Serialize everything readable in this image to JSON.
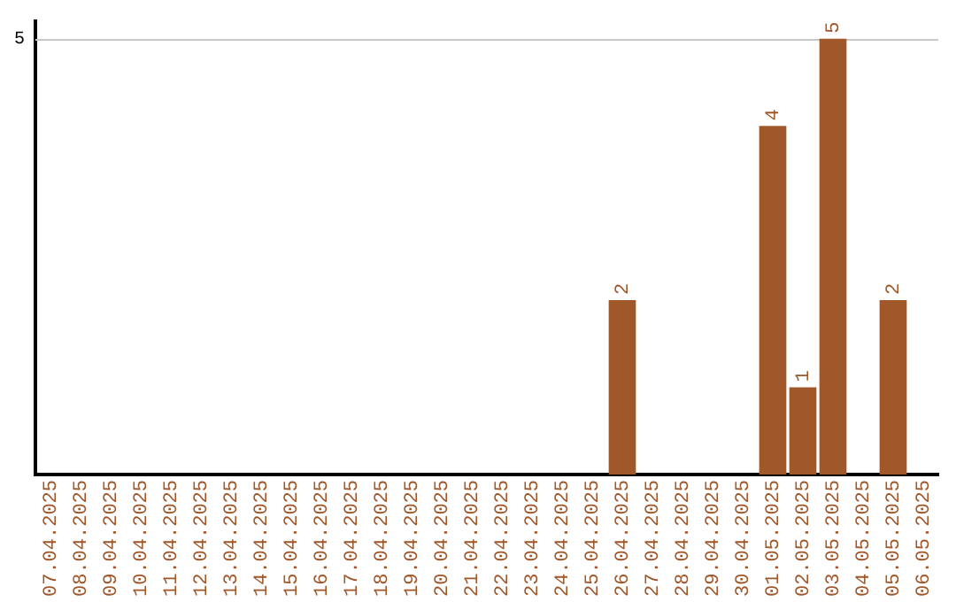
{
  "chart_data": {
    "type": "bar",
    "categories": [
      "07.04.2025",
      "08.04.2025",
      "09.04.2025",
      "10.04.2025",
      "11.04.2025",
      "12.04.2025",
      "13.04.2025",
      "14.04.2025",
      "15.04.2025",
      "16.04.2025",
      "17.04.2025",
      "18.04.2025",
      "19.04.2025",
      "20.04.2025",
      "21.04.2025",
      "22.04.2025",
      "23.04.2025",
      "24.04.2025",
      "25.04.2025",
      "26.04.2025",
      "27.04.2025",
      "28.04.2025",
      "29.04.2025",
      "30.04.2025",
      "01.05.2025",
      "02.05.2025",
      "03.05.2025",
      "04.05.2025",
      "05.05.2025",
      "06.05.2025"
    ],
    "values": [
      null,
      null,
      null,
      null,
      null,
      null,
      null,
      null,
      null,
      null,
      null,
      null,
      null,
      null,
      null,
      null,
      null,
      null,
      null,
      2,
      null,
      null,
      null,
      null,
      4,
      1,
      5,
      null,
      2,
      null
    ],
    "color": "#a0572a",
    "ylim": [
      0,
      5.2
    ],
    "yticks": [
      5
    ],
    "grid": "y",
    "data_labels": true,
    "legend": false
  }
}
